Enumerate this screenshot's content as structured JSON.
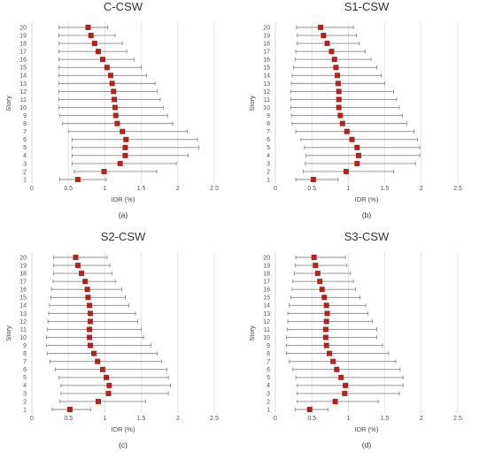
{
  "colors": {
    "marker": "#b22222",
    "whisker": "#8c8c8c",
    "grid": "#e0e0e0",
    "text": "#333333"
  },
  "chart_data": [
    {
      "type": "scatter",
      "title": "C-CSW",
      "caption": "(a)",
      "xlabel": "IDR (%)",
      "ylabel": "Story",
      "xlim": [
        0,
        2.5
      ],
      "xticks": [
        "0",
        "0.5",
        "1",
        "1.5",
        "2",
        "2.5"
      ],
      "stories": [
        "1",
        "2",
        "3",
        "4",
        "5",
        "6",
        "7",
        "8",
        "9",
        "10",
        "11",
        "12",
        "13",
        "14",
        "15",
        "16",
        "17",
        "18",
        "19",
        "20"
      ],
      "mean": [
        0.63,
        0.99,
        1.21,
        1.28,
        1.28,
        1.29,
        1.24,
        1.17,
        1.15,
        1.14,
        1.13,
        1.12,
        1.1,
        1.08,
        1.03,
        0.97,
        0.91,
        0.86,
        0.81,
        0.77
      ],
      "low": [
        0.38,
        0.58,
        0.55,
        0.55,
        0.55,
        0.55,
        0.5,
        0.42,
        0.38,
        0.37,
        0.37,
        0.37,
        0.37,
        0.37,
        0.37,
        0.37,
        0.37,
        0.37,
        0.37,
        0.37
      ],
      "high": [
        1.02,
        1.71,
        1.98,
        2.14,
        2.29,
        2.27,
        2.13,
        1.93,
        1.86,
        1.8,
        1.76,
        1.72,
        1.69,
        1.57,
        1.5,
        1.4,
        1.3,
        1.24,
        1.14,
        1.04
      ],
      "grid": true
    },
    {
      "type": "scatter",
      "title": "S1-CSW",
      "caption": "(b)",
      "xlabel": "IDR (%)",
      "ylabel": "Story",
      "xlim": [
        0,
        2.5
      ],
      "xticks": [
        "0",
        "0.5",
        "1",
        "1.5",
        "2",
        "2.5"
      ],
      "stories": [
        "1",
        "2",
        "3",
        "4",
        "5",
        "6",
        "7",
        "8",
        "9",
        "10",
        "11",
        "12",
        "13",
        "14",
        "15",
        "16",
        "17",
        "18",
        "19",
        "20"
      ],
      "mean": [
        0.52,
        0.97,
        1.12,
        1.14,
        1.12,
        1.05,
        0.98,
        0.92,
        0.89,
        0.87,
        0.87,
        0.87,
        0.86,
        0.85,
        0.83,
        0.81,
        0.77,
        0.71,
        0.66,
        0.62
      ],
      "low": [
        0.28,
        0.38,
        0.41,
        0.42,
        0.4,
        0.35,
        0.28,
        0.23,
        0.22,
        0.21,
        0.21,
        0.21,
        0.22,
        0.23,
        0.25,
        0.27,
        0.28,
        0.3,
        0.3,
        0.29
      ],
      "high": [
        0.86,
        1.62,
        1.92,
        1.98,
        1.98,
        1.95,
        1.9,
        1.8,
        1.74,
        1.7,
        1.66,
        1.62,
        1.5,
        1.45,
        1.39,
        1.31,
        1.23,
        1.15,
        1.11,
        1.07
      ],
      "grid": true
    },
    {
      "type": "scatter",
      "title": "S2-CSW",
      "caption": "(c)",
      "xlabel": "IDR (%)",
      "ylabel": "Story",
      "xlim": [
        0,
        2.5
      ],
      "xticks": [
        "0",
        "0.5",
        "1",
        "1.5",
        "2",
        "2.5"
      ],
      "stories": [
        "1",
        "2",
        "3",
        "4",
        "5",
        "6",
        "7",
        "8",
        "9",
        "10",
        "11",
        "12",
        "13",
        "14",
        "15",
        "16",
        "17",
        "18",
        "19",
        "20"
      ],
      "mean": [
        0.52,
        0.91,
        1.05,
        1.06,
        1.02,
        0.97,
        0.9,
        0.85,
        0.8,
        0.79,
        0.79,
        0.8,
        0.8,
        0.79,
        0.77,
        0.76,
        0.73,
        0.68,
        0.63,
        0.6
      ],
      "low": [
        0.28,
        0.38,
        0.4,
        0.4,
        0.37,
        0.32,
        0.25,
        0.21,
        0.2,
        0.2,
        0.21,
        0.22,
        0.23,
        0.24,
        0.26,
        0.27,
        0.29,
        0.3,
        0.3,
        0.3
      ],
      "high": [
        0.81,
        1.56,
        1.87,
        1.9,
        1.87,
        1.85,
        1.78,
        1.72,
        1.63,
        1.53,
        1.5,
        1.45,
        1.42,
        1.33,
        1.28,
        1.23,
        1.15,
        1.1,
        1.07,
        1.03
      ],
      "grid": true
    },
    {
      "type": "scatter",
      "title": "S3-CSW",
      "caption": "(d)",
      "xlabel": "IDR (%)",
      "ylabel": "Story",
      "xlim": [
        0,
        2.5
      ],
      "xticks": [
        "0",
        "0.5",
        "1",
        "1.5",
        "2",
        "2.5"
      ],
      "stories": [
        "1",
        "2",
        "3",
        "4",
        "5",
        "6",
        "7",
        "8",
        "9",
        "10",
        "11",
        "12",
        "13",
        "14",
        "15",
        "16",
        "17",
        "18",
        "19",
        "20"
      ],
      "mean": [
        0.47,
        0.82,
        0.95,
        0.96,
        0.9,
        0.84,
        0.79,
        0.74,
        0.7,
        0.69,
        0.69,
        0.7,
        0.71,
        0.7,
        0.67,
        0.64,
        0.61,
        0.58,
        0.55,
        0.53
      ],
      "low": [
        0.27,
        0.3,
        0.3,
        0.3,
        0.28,
        0.24,
        0.19,
        0.15,
        0.15,
        0.15,
        0.16,
        0.17,
        0.17,
        0.19,
        0.21,
        0.23,
        0.24,
        0.26,
        0.27,
        0.28
      ],
      "high": [
        0.72,
        1.41,
        1.7,
        1.75,
        1.75,
        1.71,
        1.65,
        1.55,
        1.47,
        1.39,
        1.39,
        1.33,
        1.27,
        1.24,
        1.16,
        1.1,
        1.07,
        1.03,
        0.98,
        0.96
      ],
      "grid": true
    }
  ]
}
